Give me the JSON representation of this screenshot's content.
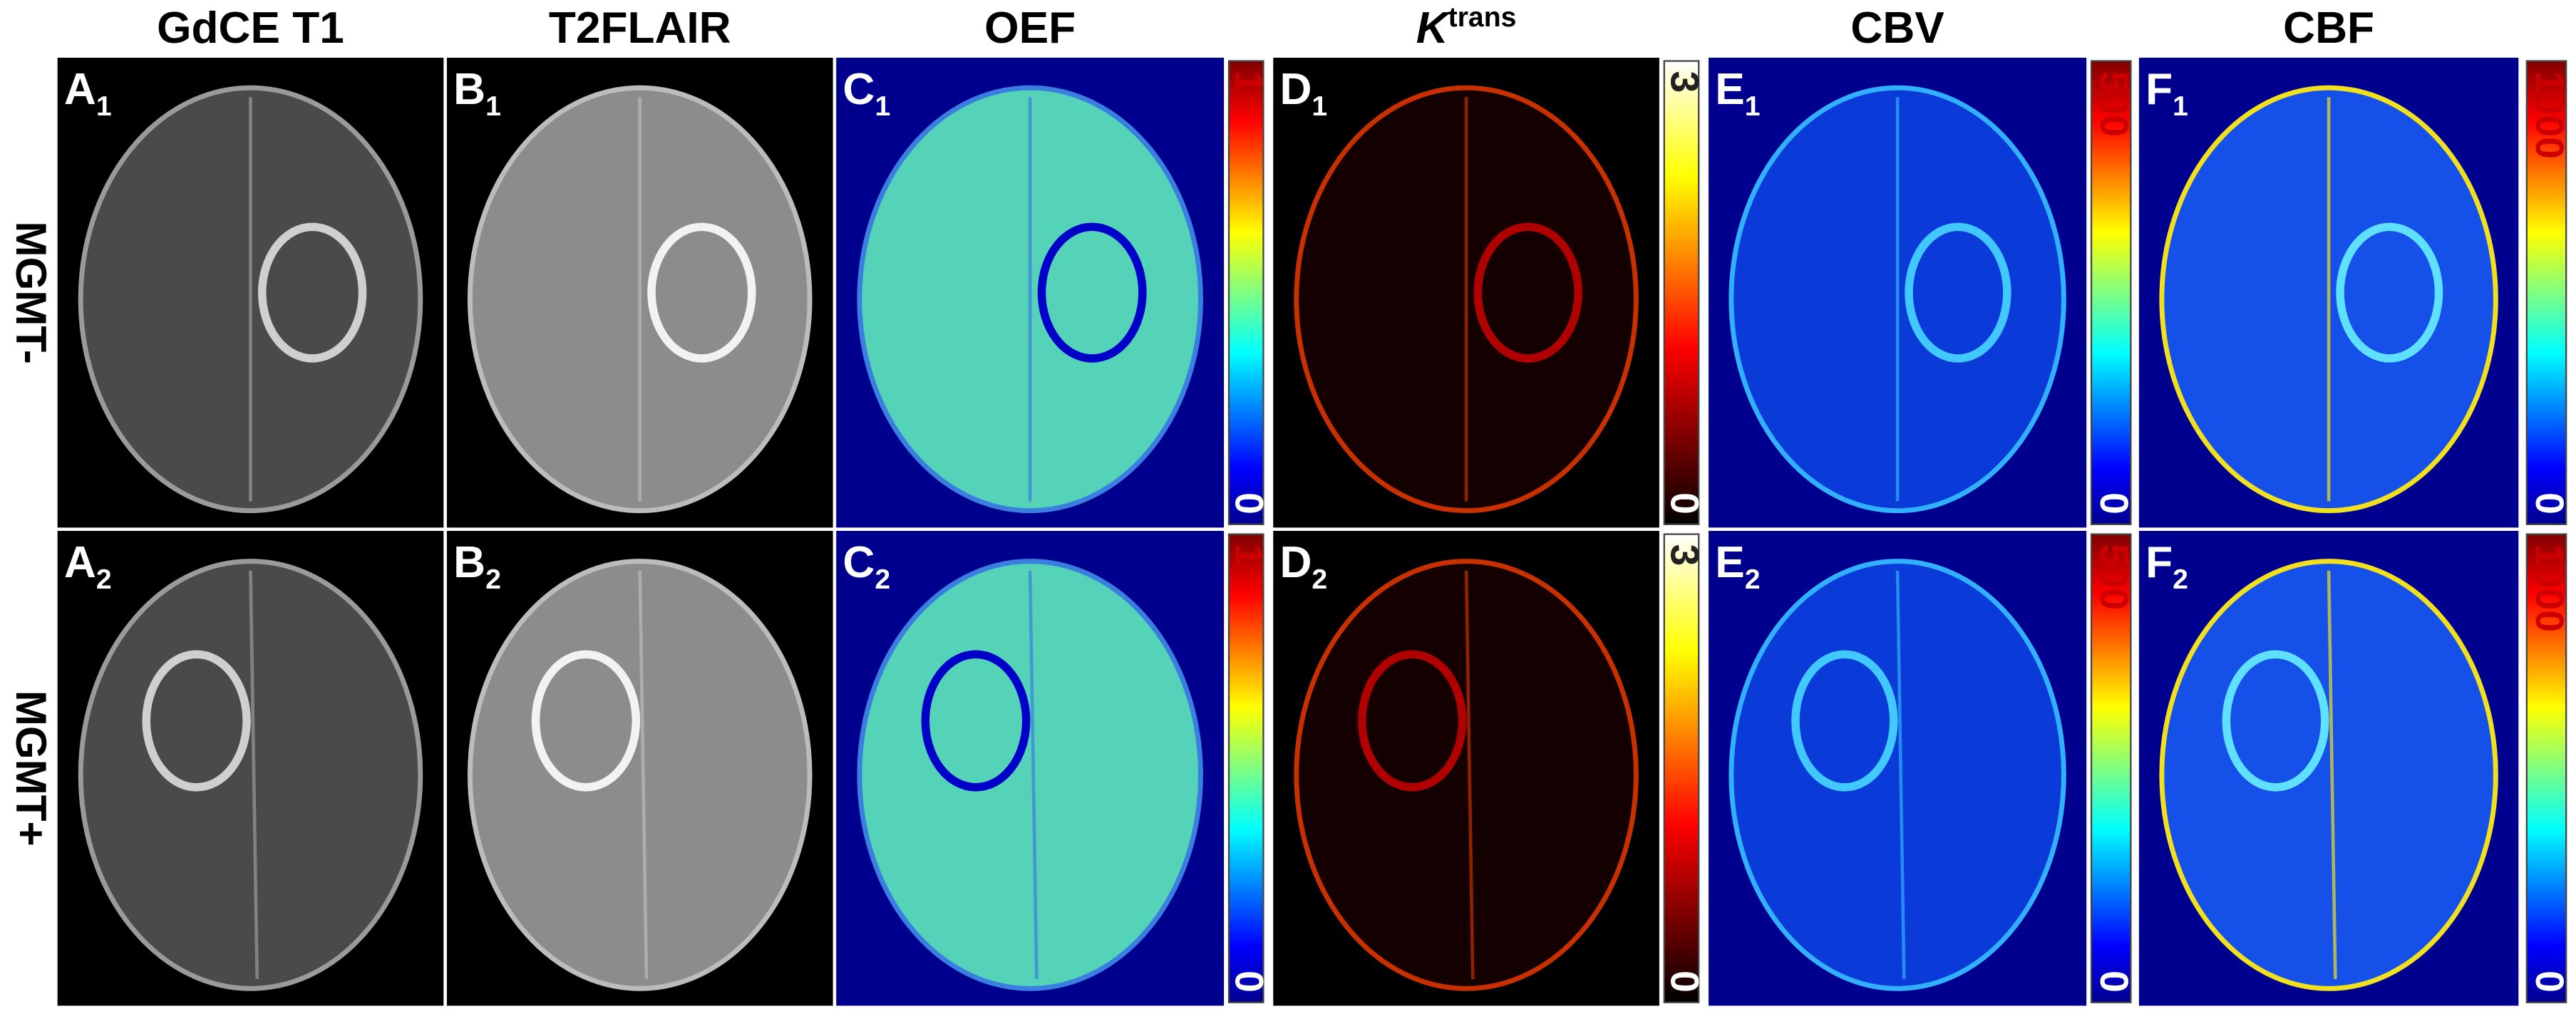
{
  "columns": [
    {
      "title": "GdCE T1"
    },
    {
      "title": "T2FLAIR"
    },
    {
      "title": "OEF"
    },
    {
      "title": "K",
      "sup": "trans"
    },
    {
      "title": "CBV"
    },
    {
      "title": "CBF"
    }
  ],
  "rows": [
    {
      "label": "MGMT-",
      "panels": [
        {
          "letter": "A",
          "sub": "1"
        },
        {
          "letter": "B",
          "sub": "1"
        },
        {
          "letter": "C",
          "sub": "1",
          "colorbar": {
            "max": "1",
            "min": "0"
          }
        },
        {
          "letter": "D",
          "sub": "1",
          "colorbar": {
            "max": "3",
            "min": "0"
          }
        },
        {
          "letter": "E",
          "sub": "1",
          "colorbar": {
            "max": "500",
            "min": "0"
          }
        },
        {
          "letter": "F",
          "sub": "1",
          "colorbar": {
            "max": "1000",
            "min": "0"
          }
        }
      ]
    },
    {
      "label": "MGMT+",
      "panels": [
        {
          "letter": "A",
          "sub": "2"
        },
        {
          "letter": "B",
          "sub": "2"
        },
        {
          "letter": "C",
          "sub": "2",
          "colorbar": {
            "max": "1",
            "min": "0"
          }
        },
        {
          "letter": "D",
          "sub": "2",
          "colorbar": {
            "max": "3",
            "min": "0"
          }
        },
        {
          "letter": "E",
          "sub": "2",
          "colorbar": {
            "max": "500",
            "min": "0"
          }
        },
        {
          "letter": "F",
          "sub": "2",
          "colorbar": {
            "max": "1000",
            "min": "0"
          }
        }
      ]
    }
  ]
}
